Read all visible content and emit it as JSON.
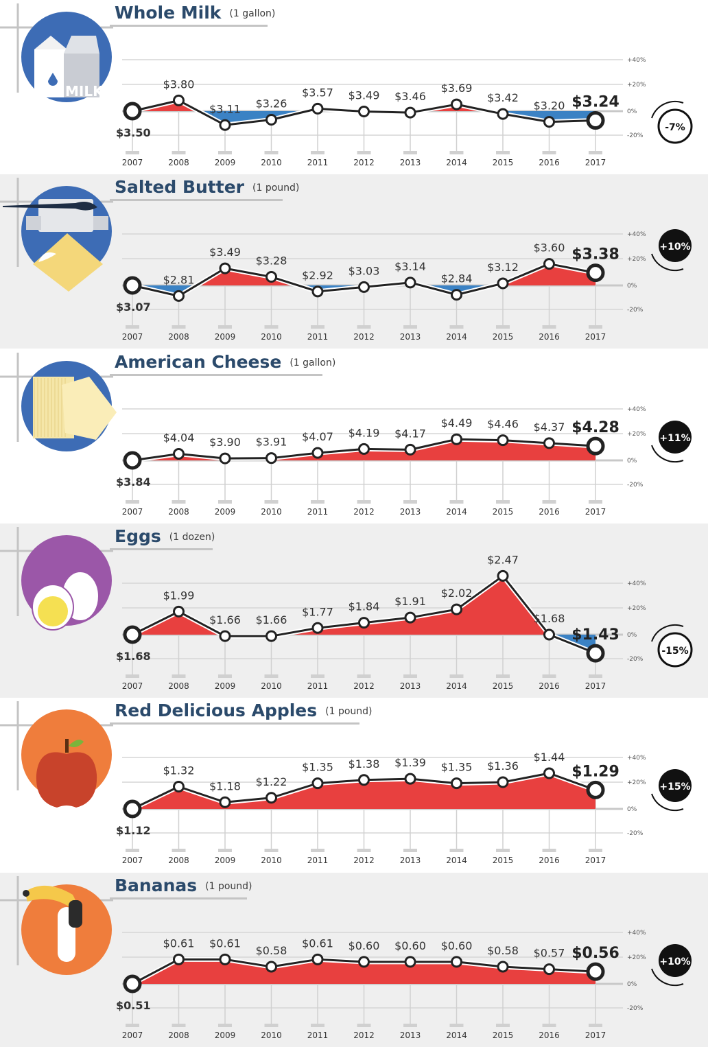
{
  "axis": {
    "years": [
      "2007",
      "2008",
      "2009",
      "2010",
      "2011",
      "2012",
      "2013",
      "2014",
      "2015",
      "2016",
      "2017"
    ],
    "right_ticks": [
      "+40%",
      "+20%",
      "0%",
      "-20%"
    ]
  },
  "colors": {
    "title": "#2b4a6b",
    "increase": "#e8403f",
    "decrease": "#3b82c4",
    "line": "#222222",
    "panel_alt": "#efefef",
    "circle_blue": "#3d6cb5",
    "circle_purple": "#9b57a8",
    "circle_orange": "#ef7d3c"
  },
  "panels": [
    {
      "title": "Whole Milk",
      "unit": "(1 gallon)",
      "icon": "milk-carton-icon",
      "circle": "#3d6cb5",
      "milk_label": "MILK",
      "labels": [
        "$3.50",
        "$3.80",
        "$3.11",
        "$3.26",
        "$3.57",
        "$3.49",
        "$3.46",
        "$3.69",
        "$3.42",
        "$3.20",
        "$3.24"
      ],
      "change": "-7%"
    },
    {
      "title": "Salted Butter",
      "unit": "(1 pound)",
      "icon": "butter-icon",
      "circle": "#3d6cb5",
      "labels": [
        "$3.07",
        "$2.81",
        "$3.49",
        "$3.28",
        "$2.92",
        "$3.03",
        "$3.14",
        "$2.84",
        "$3.12",
        "$3.60",
        "$3.38"
      ],
      "change": "+10%"
    },
    {
      "title": "American Cheese",
      "unit": "(1 gallon)",
      "icon": "cheese-icon",
      "circle": "#3d6cb5",
      "labels": [
        "$3.84",
        "$4.04",
        "$3.90",
        "$3.91",
        "$4.07",
        "$4.19",
        "$4.17",
        "$4.49",
        "$4.46",
        "$4.37",
        "$4.28"
      ],
      "change": "+11%"
    },
    {
      "title": "Eggs",
      "unit": "(1 dozen)",
      "icon": "eggs-icon",
      "circle": "#9b57a8",
      "labels": [
        "$1.68",
        "$1.99",
        "$1.66",
        "$1.66",
        "$1.77",
        "$1.84",
        "$1.91",
        "$2.02",
        "$2.47",
        "$1.68",
        "$1.43"
      ],
      "change": "-15%"
    },
    {
      "title": "Red Delicious Apples",
      "unit": "(1 pound)",
      "icon": "apple-icon",
      "circle": "#ef7d3c",
      "labels": [
        "$1.12",
        "$1.32",
        "$1.18",
        "$1.22",
        "$1.35",
        "$1.38",
        "$1.39",
        "$1.35",
        "$1.36",
        "$1.44",
        "$1.29"
      ],
      "change": "+15%"
    },
    {
      "title": "Bananas",
      "unit": "(1 pound)",
      "icon": "banana-icon",
      "circle": "#ef7d3c",
      "labels": [
        "$0.51",
        "$0.61",
        "$0.61",
        "$0.58",
        "$0.61",
        "$0.60",
        "$0.60",
        "$0.60",
        "$0.58",
        "$0.57",
        "$0.56"
      ],
      "change": "+10%"
    }
  ],
  "chart_data": [
    {
      "type": "line",
      "title": "Whole Milk",
      "x": [
        "2007",
        "2008",
        "2009",
        "2010",
        "2011",
        "2012",
        "2013",
        "2014",
        "2015",
        "2016",
        "2017"
      ],
      "series": [
        {
          "values": [
            3.5,
            3.8,
            3.11,
            3.26,
            3.57,
            3.49,
            3.46,
            3.69,
            3.42,
            3.2,
            3.24
          ]
        }
      ],
      "ylim": [
        -20,
        40
      ],
      "change": "-7%"
    },
    {
      "type": "line",
      "title": "Salted Butter",
      "x": [
        "2007",
        "2008",
        "2009",
        "2010",
        "2011",
        "2012",
        "2013",
        "2014",
        "2015",
        "2016",
        "2017"
      ],
      "series": [
        {
          "values": [
            3.07,
            2.81,
            3.49,
            3.28,
            2.92,
            3.03,
            3.14,
            2.84,
            3.12,
            3.6,
            3.38
          ]
        }
      ],
      "ylim": [
        -20,
        40
      ],
      "change": "+10%"
    },
    {
      "type": "line",
      "title": "American Cheese",
      "x": [
        "2007",
        "2008",
        "2009",
        "2010",
        "2011",
        "2012",
        "2013",
        "2014",
        "2015",
        "2016",
        "2017"
      ],
      "series": [
        {
          "values": [
            3.84,
            4.04,
            3.9,
            3.91,
            4.07,
            4.19,
            4.17,
            4.49,
            4.46,
            4.37,
            4.28
          ]
        }
      ],
      "ylim": [
        -20,
        40
      ],
      "change": "+11%"
    },
    {
      "type": "line",
      "title": "Eggs",
      "x": [
        "2007",
        "2008",
        "2009",
        "2010",
        "2011",
        "2012",
        "2013",
        "2014",
        "2015",
        "2016",
        "2017"
      ],
      "series": [
        {
          "values": [
            1.68,
            1.99,
            1.66,
            1.66,
            1.77,
            1.84,
            1.91,
            2.02,
            2.47,
            1.68,
            1.43
          ]
        }
      ],
      "ylim": [
        -20,
        40
      ],
      "change": "-15%"
    },
    {
      "type": "line",
      "title": "Red Delicious Apples",
      "x": [
        "2007",
        "2008",
        "2009",
        "2010",
        "2011",
        "2012",
        "2013",
        "2014",
        "2015",
        "2016",
        "2017"
      ],
      "series": [
        {
          "values": [
            1.12,
            1.32,
            1.18,
            1.22,
            1.35,
            1.38,
            1.39,
            1.35,
            1.36,
            1.44,
            1.29
          ]
        }
      ],
      "ylim": [
        -20,
        40
      ],
      "change": "+15%"
    },
    {
      "type": "line",
      "title": "Bananas",
      "x": [
        "2007",
        "2008",
        "2009",
        "2010",
        "2011",
        "2012",
        "2013",
        "2014",
        "2015",
        "2016",
        "2017"
      ],
      "series": [
        {
          "values": [
            0.51,
            0.61,
            0.61,
            0.58,
            0.61,
            0.6,
            0.6,
            0.6,
            0.58,
            0.57,
            0.56
          ]
        }
      ],
      "ylim": [
        -20,
        40
      ],
      "change": "+10%"
    }
  ]
}
